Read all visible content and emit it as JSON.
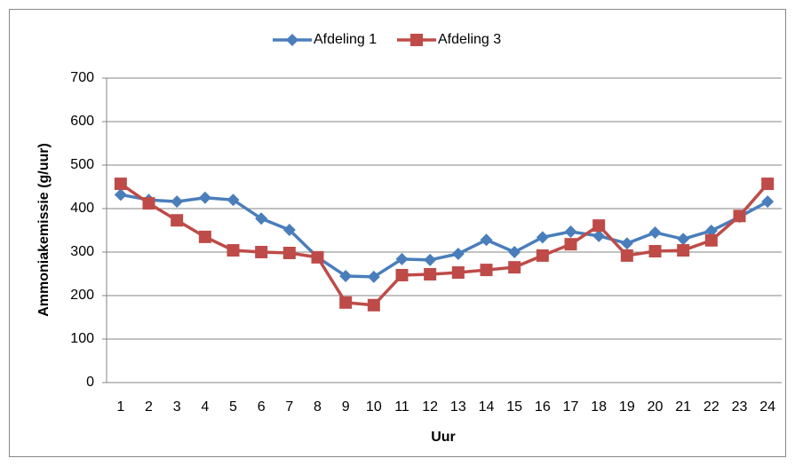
{
  "chart_data": {
    "type": "line",
    "x_label": "Uur",
    "y_label": "Ammoniakemissie (g/uur)",
    "categories": [
      "1",
      "2",
      "3",
      "4",
      "5",
      "6",
      "7",
      "8",
      "9",
      "10",
      "11",
      "12",
      "13",
      "14",
      "15",
      "16",
      "17",
      "18",
      "19",
      "20",
      "21",
      "22",
      "23",
      "24"
    ],
    "series": [
      {
        "name": "Afdeling 1",
        "color": "#4a7ebb",
        "marker": "diamond",
        "values": [
          432,
          420,
          416,
          425,
          420,
          377,
          351,
          288,
          245,
          243,
          284,
          282,
          296,
          328,
          300,
          334,
          347,
          337,
          320,
          345,
          330,
          349,
          381,
          416
        ]
      },
      {
        "name": "Afdeling 3",
        "color": "#be4b48",
        "marker": "square",
        "values": [
          457,
          412,
          373,
          335,
          304,
          300,
          298,
          288,
          184,
          178,
          247,
          249,
          253,
          259,
          265,
          292,
          318,
          361,
          292,
          302,
          304,
          327,
          383,
          457
        ]
      }
    ],
    "ylim": [
      0,
      700
    ],
    "yticks": [
      0,
      100,
      200,
      300,
      400,
      500,
      600,
      700
    ],
    "grid": true,
    "legend": "top"
  }
}
